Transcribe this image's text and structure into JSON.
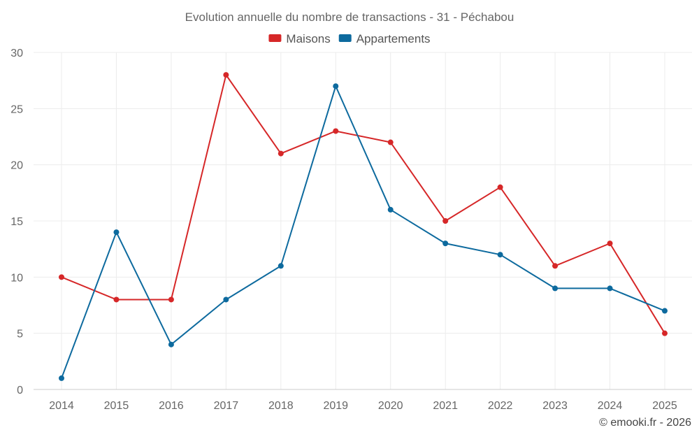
{
  "chart_data": {
    "type": "line",
    "title": "Evolution annuelle du nombre de transactions - 31 - Péchabou",
    "categories": [
      "2014",
      "2015",
      "2016",
      "2017",
      "2018",
      "2019",
      "2020",
      "2021",
      "2022",
      "2023",
      "2024",
      "2025"
    ],
    "series": [
      {
        "name": "Maisons",
        "color": "#d62728",
        "values": [
          10,
          8,
          8,
          28,
          21,
          23,
          22,
          15,
          18,
          11,
          13,
          5
        ]
      },
      {
        "name": "Appartements",
        "color": "#0d6a9e",
        "values": [
          1,
          14,
          4,
          8,
          11,
          27,
          16,
          13,
          12,
          9,
          9,
          7
        ]
      }
    ],
    "ylim": [
      0,
      30
    ],
    "yticks": [
      "0",
      "5",
      "10",
      "15",
      "20",
      "25",
      "30"
    ],
    "xlabel": "",
    "ylabel": "",
    "grid": true,
    "legend": "top-center"
  },
  "credit": "© emooki.fr - 2026"
}
